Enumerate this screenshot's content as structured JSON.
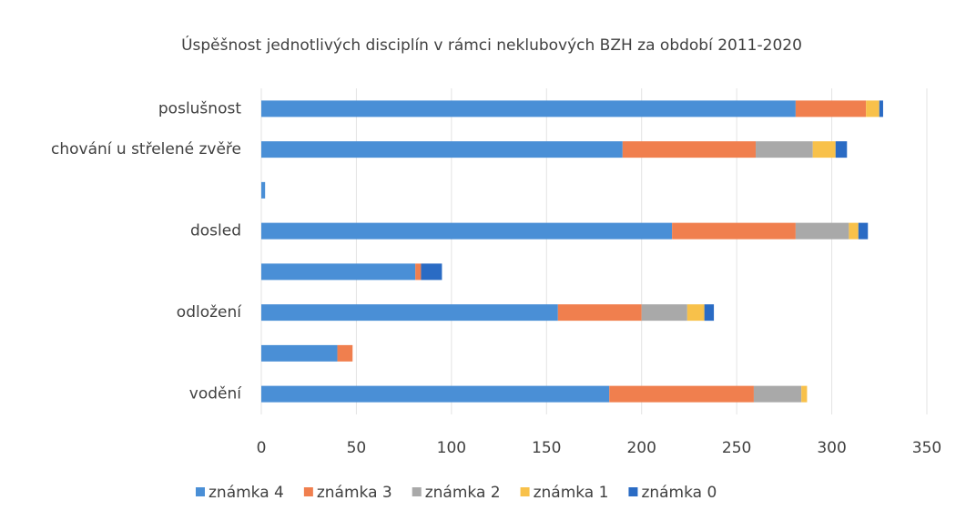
{
  "chart_data": {
    "type": "stacked-bar-horizontal",
    "title": "Úspěšnost jednotlivých disciplín v rámci neklubových BZH za období 2011-2020",
    "categories": [
      "poslušnost",
      "chování u střelené zvěře",
      null,
      "dosled",
      null,
      "odložení",
      null,
      "vodění"
    ],
    "series": [
      {
        "name": "známka 4",
        "color": "#4a8fd6",
        "values": [
          281,
          190,
          2,
          216,
          81,
          156,
          40,
          183
        ]
      },
      {
        "name": "známka 3",
        "color": "#f07f4e",
        "values": [
          37,
          70,
          0,
          65,
          3,
          44,
          8,
          76
        ]
      },
      {
        "name": "známka 2",
        "color": "#a9a9a9",
        "values": [
          0,
          30,
          0,
          28,
          0,
          24,
          0,
          25
        ]
      },
      {
        "name": "známka 1",
        "color": "#f8c14a",
        "values": [
          7,
          12,
          0,
          5,
          0,
          9,
          0,
          3
        ]
      },
      {
        "name": "známka 0",
        "color": "#2a6bc4",
        "values": [
          2,
          6,
          0,
          5,
          11,
          5,
          0,
          0
        ]
      }
    ],
    "xlim": [
      0,
      350
    ],
    "xticks": [
      0,
      50,
      100,
      150,
      200,
      250,
      300,
      350
    ],
    "grid": true,
    "legend": "bottom"
  }
}
